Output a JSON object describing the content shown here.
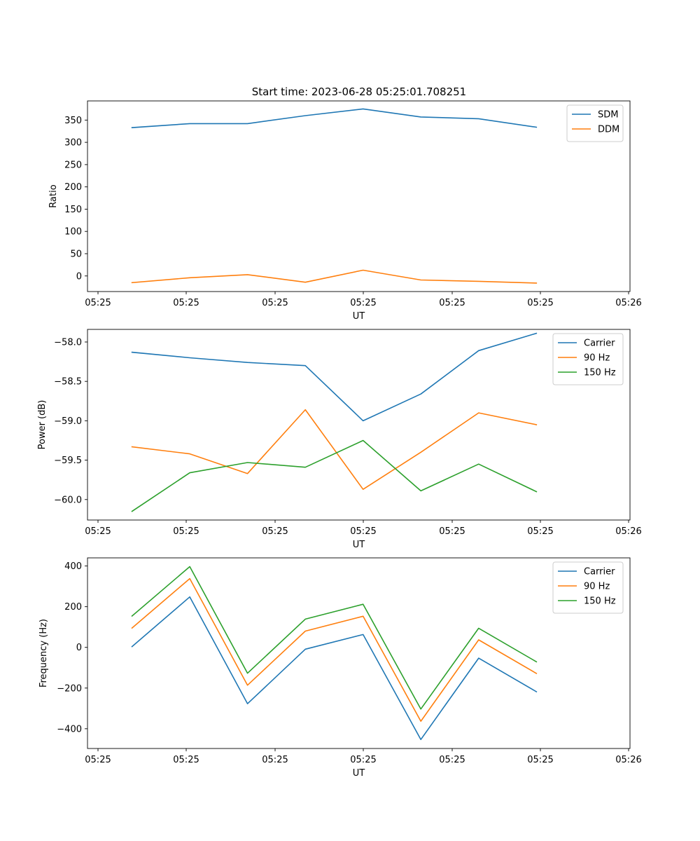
{
  "figure": {
    "title": "Start time: 2023-06-28 05:25:01.708251"
  },
  "chart_data": [
    {
      "type": "line",
      "title": "Start time: 2023-06-28 05:25:01.708251",
      "xlabel": "UT",
      "ylabel": "Ratio",
      "x_ticks": [
        "05:25",
        "05:25",
        "05:25",
        "05:25",
        "05:25",
        "05:25",
        "05:26"
      ],
      "y_ticks": [
        0,
        50,
        100,
        150,
        200,
        250,
        300,
        350
      ],
      "ylim": [
        -35,
        393
      ],
      "x_index": [
        0,
        1,
        2,
        3,
        4,
        5,
        6,
        7
      ],
      "xlim": [
        -0.77,
        8.62
      ],
      "grid": false,
      "legend_position": "upper right",
      "series": [
        {
          "name": "SDM",
          "color": "#1f77b4",
          "values": [
            333,
            342,
            342,
            360,
            375,
            357,
            353,
            334
          ]
        },
        {
          "name": "DDM",
          "color": "#ff7f0e",
          "values": [
            -15,
            -4,
            3,
            -14,
            13,
            -9,
            -12,
            -16
          ]
        }
      ]
    },
    {
      "type": "line",
      "title": "",
      "xlabel": "UT",
      "ylabel": "Power (dB)",
      "x_ticks": [
        "05:25",
        "05:25",
        "05:25",
        "05:25",
        "05:25",
        "05:25",
        "05:26"
      ],
      "y_ticks": [
        -60.0,
        -59.5,
        -59.0,
        -58.5,
        -58.0
      ],
      "y_tick_labels": [
        "−60.0",
        "−59.5",
        "−59.0",
        "−58.5",
        "−58.0"
      ],
      "ylim": [
        -60.26,
        -57.84
      ],
      "x_index": [
        0,
        1,
        2,
        3,
        4,
        5,
        6,
        7
      ],
      "xlim": [
        -0.77,
        8.62
      ],
      "grid": false,
      "legend_position": "upper right",
      "series": [
        {
          "name": "Carrier",
          "color": "#1f77b4",
          "values": [
            -58.13,
            -58.2,
            -58.26,
            -58.3,
            -59.0,
            -58.66,
            -58.11,
            -57.89
          ]
        },
        {
          "name": "90 Hz",
          "color": "#ff7f0e",
          "values": [
            -59.33,
            -59.42,
            -59.67,
            -58.86,
            -59.87,
            -59.4,
            -58.9,
            -59.05
          ]
        },
        {
          "name": "150 Hz",
          "color": "#2ca02c",
          "values": [
            -60.15,
            -59.66,
            -59.53,
            -59.59,
            -59.25,
            -59.89,
            -59.55,
            -59.9
          ]
        }
      ]
    },
    {
      "type": "line",
      "title": "",
      "xlabel": "UT",
      "ylabel": "Frequency (Hz)",
      "x_ticks": [
        "05:25",
        "05:25",
        "05:25",
        "05:25",
        "05:25",
        "05:25",
        "05:26"
      ],
      "y_ticks": [
        -400,
        -200,
        0,
        200,
        400
      ],
      "y_tick_labels": [
        "−400",
        "−200",
        "0",
        "200",
        "400"
      ],
      "ylim": [
        -497,
        440
      ],
      "x_index": [
        0,
        1,
        2,
        3,
        4,
        5,
        6,
        7
      ],
      "xlim": [
        -0.77,
        8.62
      ],
      "grid": false,
      "legend_position": "upper right",
      "series": [
        {
          "name": "Carrier",
          "color": "#1f77b4",
          "values": [
            4,
            248,
            -277,
            -9,
            63,
            -453,
            -53,
            -218
          ]
        },
        {
          "name": "90 Hz",
          "color": "#ff7f0e",
          "values": [
            95,
            338,
            -186,
            80,
            153,
            -363,
            37,
            -128
          ]
        },
        {
          "name": "150 Hz",
          "color": "#2ca02c",
          "values": [
            154,
            397,
            -127,
            139,
            212,
            -303,
            94,
            -71
          ]
        }
      ]
    }
  ]
}
